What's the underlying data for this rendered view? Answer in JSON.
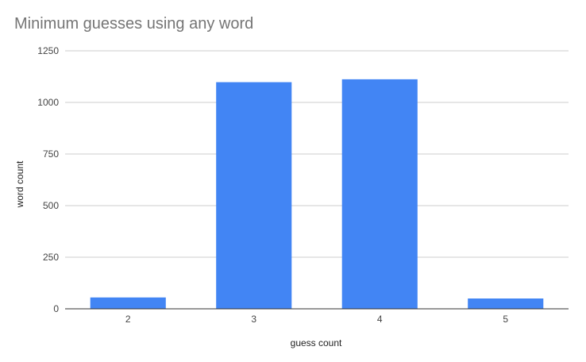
{
  "chart_data": {
    "type": "bar",
    "title": "Minimum guesses using any word",
    "xlabel": "guess count",
    "ylabel": "word count",
    "categories": [
      "2",
      "3",
      "4",
      "5"
    ],
    "series": [
      {
        "values": [
          55,
          1098,
          1112,
          50
        ]
      }
    ],
    "ylim": [
      0,
      1250
    ],
    "yticks": [
      "0",
      "250",
      "500",
      "750",
      "1000",
      "1250"
    ],
    "grid": true,
    "legend": "none",
    "colors": {
      "bar": "#4285f4",
      "grid": "#cccccc",
      "baseline": "#333333",
      "title": "#757575"
    }
  }
}
